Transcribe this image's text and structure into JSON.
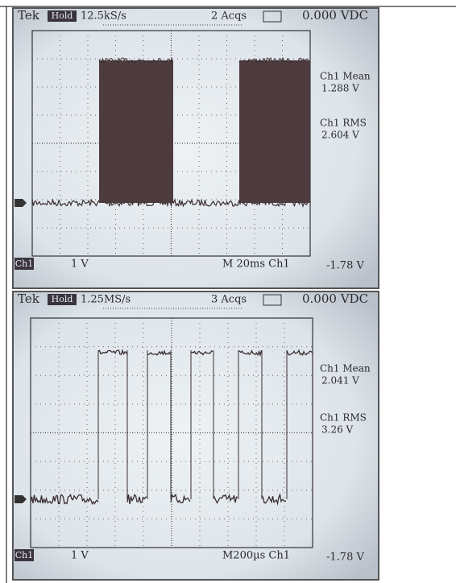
{
  "screens": [
    {
      "header": {
        "brand": "Tek",
        "mode": "Hold",
        "sample_rate": "12.5kS/s",
        "acquisitions": "2 Acqs",
        "reading": "0.000 VDC"
      },
      "measurements": [
        {
          "label": "Ch1 Mean",
          "value": "1.288 V"
        },
        {
          "label": "Ch1 RMS",
          "value": "2.604 V"
        }
      ],
      "footer": {
        "channel": "Ch1",
        "scale": "1 V",
        "timebase": "M 20ms Ch1",
        "trigger": "-1.78 V"
      }
    },
    {
      "header": {
        "brand": "Tek",
        "mode": "Hold",
        "sample_rate": "1.25MS/s",
        "acquisitions": "3 Acqs",
        "reading": "0.000 VDC"
      },
      "measurements": [
        {
          "label": "Ch1 Mean",
          "value": "2.041 V"
        },
        {
          "label": "Ch1 RMS",
          "value": "3.26 V"
        }
      ],
      "footer": {
        "channel": "Ch1",
        "scale": "1 V",
        "timebase": "M200µs Ch1",
        "trigger": "-1.78 V"
      }
    }
  ]
}
